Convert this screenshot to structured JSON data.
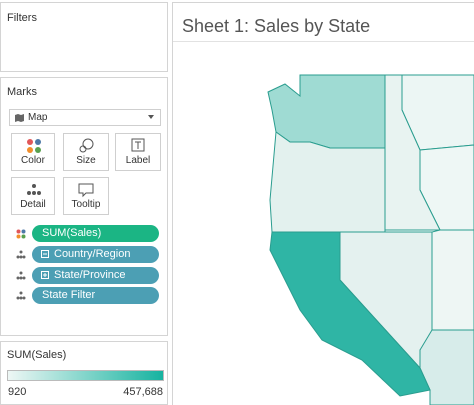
{
  "filters": {
    "title": "Filters"
  },
  "marks": {
    "title": "Marks",
    "mark_type": "Map",
    "buttons": [
      "Color",
      "Size",
      "Label",
      "Detail",
      "Tooltip"
    ],
    "pills": [
      "SUM(Sales)",
      "Country/Region",
      "State/Province",
      "State Filter"
    ]
  },
  "legend": {
    "title": "SUM(Sales)",
    "min_label": "920",
    "max_label": "457,688"
  },
  "sheet": {
    "title": "Sheet 1: Sales by State"
  }
}
